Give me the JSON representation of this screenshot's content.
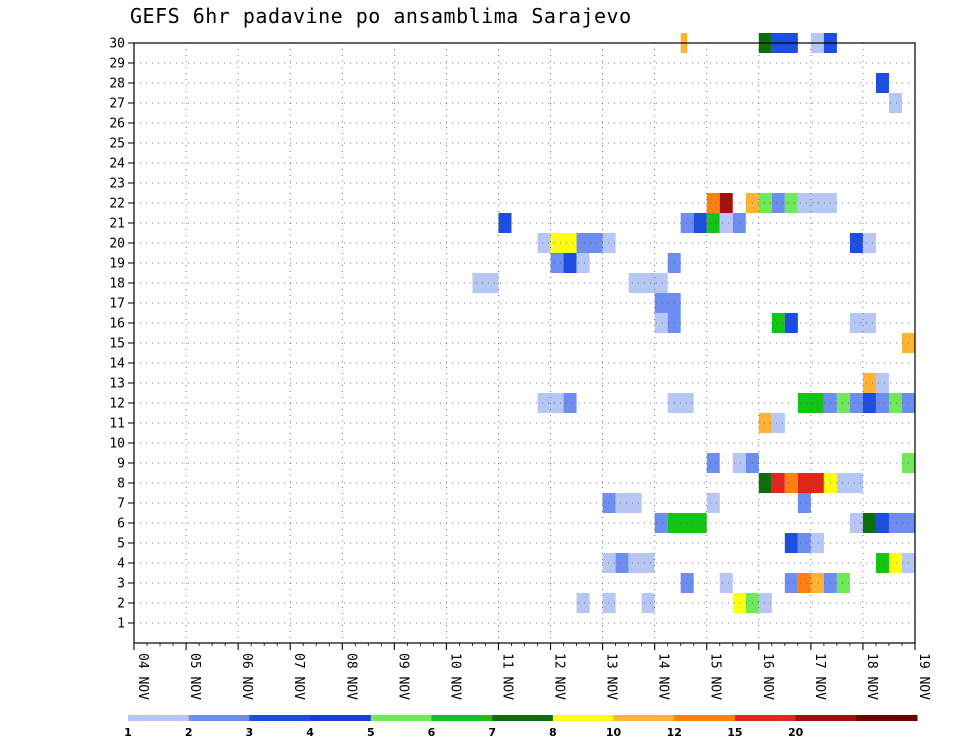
{
  "chart_data": {
    "type": "heatmap",
    "title": "GEFS 6hr padavine po ansamblima Sarajevo",
    "xlabel": "",
    "ylabel": "",
    "x_ticks": [
      "04 NOV",
      "05 NOV",
      "06 NOV",
      "07 NOV",
      "08 NOV",
      "09 NOV",
      "10 NOV",
      "11 NOV",
      "12 NOV",
      "13 NOV",
      "14 NOV",
      "15 NOV",
      "16 NOV",
      "17 NOV",
      "18 NOV",
      "19 NOV"
    ],
    "xlim": [
      0,
      60
    ],
    "y_ticks": [
      1,
      2,
      3,
      4,
      5,
      6,
      7,
      8,
      9,
      10,
      11,
      12,
      13,
      14,
      15,
      16,
      17,
      18,
      19,
      20,
      21,
      22,
      23,
      24,
      25,
      26,
      27,
      28,
      29,
      30
    ],
    "ylim": [
      0,
      30
    ],
    "grid": true,
    "colorbar": {
      "levels": [
        "1",
        "2",
        "3",
        "4",
        "5",
        "6",
        "7",
        "8",
        "10",
        "12",
        "15",
        "20"
      ],
      "colors": [
        "#b7c7f5",
        "#6b8ef0",
        "#1c4fdf",
        "#153fd6",
        "#6fe85a",
        "#14c414",
        "#0a6e0a",
        "#ffff14",
        "#ffb236",
        "#ff7f0f",
        "#e1251a",
        "#a31010",
        "#6e0000"
      ]
    },
    "cells": [
      {
        "y": 30,
        "x": [
          [
            42,
            0.5,
            10
          ]
        ]
      },
      {
        "y": 30,
        "x": [
          [
            48,
            1,
            7
          ],
          [
            49,
            2,
            3
          ],
          [
            52,
            1,
            1
          ],
          [
            53,
            1,
            3
          ]
        ]
      },
      {
        "y": 28,
        "x": [
          [
            57,
            1,
            3
          ]
        ]
      },
      {
        "y": 27,
        "x": [
          [
            58,
            1,
            1
          ]
        ]
      },
      {
        "y": 22,
        "x": [
          [
            44,
            1,
            12
          ],
          [
            45,
            1,
            20
          ],
          [
            47,
            1,
            10
          ],
          [
            48,
            1,
            5
          ],
          [
            49,
            1,
            2
          ],
          [
            50,
            1,
            5
          ],
          [
            51,
            3,
            1
          ]
        ]
      },
      {
        "y": 21,
        "x": [
          [
            28,
            1,
            3
          ],
          [
            42,
            1,
            2
          ],
          [
            43,
            1,
            3
          ],
          [
            44,
            1,
            6
          ],
          [
            45,
            1,
            1
          ],
          [
            46,
            1,
            2
          ]
        ]
      },
      {
        "y": 20,
        "x": [
          [
            31,
            1,
            1
          ],
          [
            32,
            2,
            8
          ],
          [
            34,
            2,
            2
          ],
          [
            36,
            1,
            1
          ],
          [
            55,
            1,
            3
          ],
          [
            56,
            1,
            1
          ]
        ]
      },
      {
        "y": 19,
        "x": [
          [
            32,
            1,
            2
          ],
          [
            33,
            1,
            3
          ],
          [
            34,
            1,
            1
          ],
          [
            41,
            1,
            2
          ]
        ]
      },
      {
        "y": 18,
        "x": [
          [
            26,
            2,
            1
          ],
          [
            38,
            3,
            1
          ]
        ]
      },
      {
        "y": 17,
        "x": [
          [
            40,
            2,
            2
          ]
        ]
      },
      {
        "y": 16,
        "x": [
          [
            40,
            1,
            1
          ],
          [
            41,
            1,
            2
          ],
          [
            49,
            1,
            6
          ],
          [
            50,
            1,
            3
          ],
          [
            55,
            2,
            1
          ]
        ]
      },
      {
        "y": 15,
        "x": [
          [
            59,
            1,
            10
          ]
        ]
      },
      {
        "y": 13,
        "x": [
          [
            56,
            1,
            10
          ],
          [
            57,
            1,
            1
          ]
        ]
      },
      {
        "y": 12,
        "x": [
          [
            31,
            2,
            1
          ],
          [
            33,
            1,
            2
          ],
          [
            41,
            2,
            1
          ],
          [
            51,
            2,
            6
          ],
          [
            53,
            1,
            2
          ],
          [
            54,
            1,
            5
          ],
          [
            55,
            1,
            2
          ],
          [
            56,
            1,
            3
          ],
          [
            57,
            1,
            2
          ],
          [
            58,
            1,
            5
          ],
          [
            59,
            1,
            2
          ]
        ]
      },
      {
        "y": 11,
        "x": [
          [
            48,
            1,
            10
          ],
          [
            49,
            1,
            1
          ]
        ]
      },
      {
        "y": 9,
        "x": [
          [
            44,
            1,
            2
          ],
          [
            46,
            1,
            1
          ],
          [
            47,
            1,
            2
          ],
          [
            59,
            1,
            5
          ]
        ]
      },
      {
        "y": 8,
        "x": [
          [
            48,
            1,
            7
          ],
          [
            49,
            1,
            15
          ],
          [
            50,
            1,
            12
          ],
          [
            51,
            2,
            15
          ],
          [
            53,
            1,
            8
          ],
          [
            54,
            2,
            1
          ]
        ]
      },
      {
        "y": 7,
        "x": [
          [
            36,
            1,
            2
          ],
          [
            37,
            2,
            1
          ],
          [
            44,
            1,
            1
          ],
          [
            51,
            1,
            2
          ]
        ]
      },
      {
        "y": 6,
        "x": [
          [
            40,
            1,
            2
          ],
          [
            41,
            3,
            6
          ],
          [
            55,
            1,
            1
          ],
          [
            56,
            1,
            7
          ],
          [
            57,
            1,
            3
          ],
          [
            58,
            2,
            2
          ]
        ]
      },
      {
        "y": 5,
        "x": [
          [
            50,
            1,
            3
          ],
          [
            51,
            1,
            2
          ],
          [
            52,
            1,
            1
          ]
        ]
      },
      {
        "y": 4,
        "x": [
          [
            36,
            1,
            1
          ],
          [
            37,
            1,
            2
          ],
          [
            38,
            2,
            1
          ],
          [
            57,
            1,
            6
          ],
          [
            58,
            1,
            8
          ],
          [
            59,
            1,
            1
          ]
        ]
      },
      {
        "y": 3,
        "x": [
          [
            42,
            1,
            2
          ],
          [
            45,
            1,
            1
          ],
          [
            50,
            1,
            2
          ],
          [
            51,
            1,
            12
          ],
          [
            52,
            1,
            10
          ],
          [
            53,
            1,
            2
          ],
          [
            54,
            1,
            5
          ]
        ]
      },
      {
        "y": 2,
        "x": [
          [
            34,
            1,
            1
          ],
          [
            36,
            1,
            1
          ],
          [
            39,
            1,
            1
          ],
          [
            46,
            1,
            8
          ],
          [
            47,
            1,
            5
          ],
          [
            48,
            1,
            1
          ]
        ]
      }
    ]
  }
}
